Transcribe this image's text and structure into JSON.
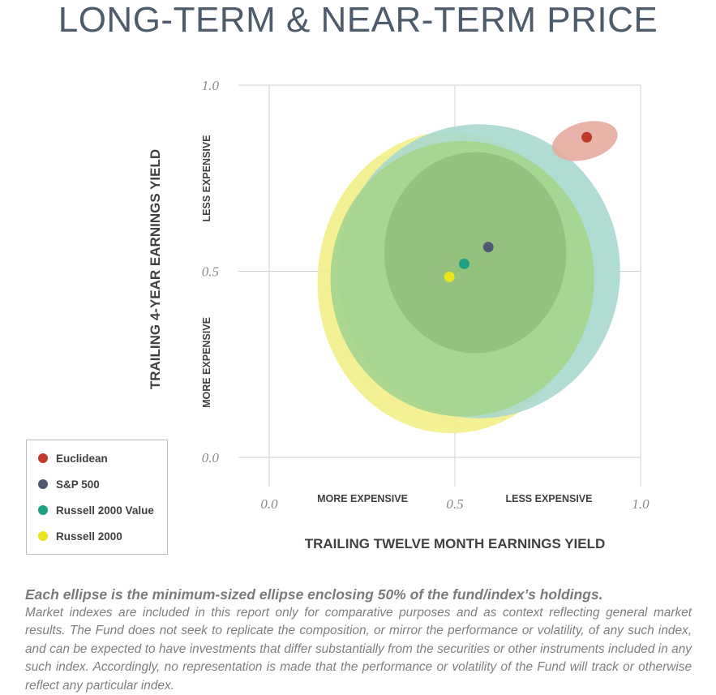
{
  "title": "LONG-TERM & NEAR-TERM PRICE",
  "chart_data": {
    "type": "scatter",
    "title": "LONG-TERM & NEAR-TERM PRICE",
    "xlabel": "TRAILING TWELVE MONTH EARNINGS YIELD",
    "ylabel": "TRAILING 4-YEAR EARNINGS YIELD",
    "xlim": [
      0.0,
      1.0
    ],
    "ylim": [
      0.0,
      1.0
    ],
    "x_ticks": [
      "0.0",
      "0.5",
      "1.0"
    ],
    "y_ticks": [
      "1.0",
      "0.5",
      "0.0"
    ],
    "grid": true,
    "legend_position": "bottom-left",
    "x_region_labels": [
      "MORE EXPENSIVE",
      "LESS EXPENSIVE"
    ],
    "y_region_labels": [
      "MORE EXPENSIVE",
      "LESS EXPENSIVE"
    ],
    "series": [
      {
        "name": "Russell 2000",
        "color": "#e9e41c",
        "fill": "#f2ef87",
        "x": 0.485,
        "y": 0.485,
        "ellipse": {
          "cx": 0.49,
          "cy": 0.47,
          "rx": 0.36,
          "ry": 0.405,
          "angle": 0
        }
      },
      {
        "name": "S&P 500",
        "color": "#4e5a72",
        "fill": "#a9d8cf",
        "x": 0.59,
        "y": 0.565,
        "ellipse": {
          "cx": 0.565,
          "cy": 0.5,
          "rx": 0.38,
          "ry": 0.395,
          "angle": 0
        }
      },
      {
        "name": "Russell 2000 Value",
        "color": "#1e9e82",
        "fill": "#a6d58f",
        "x": 0.525,
        "y": 0.52,
        "ellipse": {
          "cx": 0.52,
          "cy": 0.48,
          "rx": 0.355,
          "ry": 0.37,
          "angle": 0
        }
      },
      {
        "name": "Euclidean",
        "color": "#c0392b",
        "fill": "#e6aca0",
        "x": 0.855,
        "y": 0.86,
        "ellipse": {
          "cx": 0.85,
          "cy": 0.85,
          "rx": 0.09,
          "ry": 0.05,
          "angle": -15
        }
      }
    ],
    "inner_ellipse": {
      "cx": 0.555,
      "cy": 0.55,
      "rx": 0.245,
      "ry": 0.27,
      "fill": "#8fba78"
    }
  },
  "legend": [
    {
      "label": "Euclidean",
      "color": "#c0392b"
    },
    {
      "label": "S&P 500",
      "color": "#4e5a72"
    },
    {
      "label": "Russell 2000 Value",
      "color": "#1e9e82"
    },
    {
      "label": "Russell 2000",
      "color": "#e9e41c"
    }
  ],
  "footnote": {
    "lead": "Each ellipse is the minimum-sized ellipse enclosing 50% of the fund/index’s holdings.",
    "body": "Market indexes are included in this report only for comparative purposes and as context reflecting general market results. The Fund does not seek to replicate the composition, or mirror the performance or volatility, of any such index, and can be expected to have investments that differ substantially from the securities or other instruments included in any such index. Accordingly, no representation is made that the performance or volatility of the Fund will track or otherwise reflect any particular index."
  }
}
